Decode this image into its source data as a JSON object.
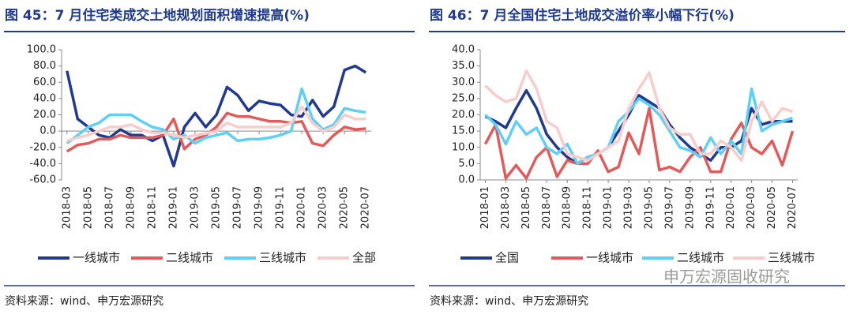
{
  "chart_data": [
    {
      "type": "line",
      "title": "图 45：7 月住宅类成交土地规划面积增速提高(%)",
      "source": "资料来源：wind、申万宏源研究",
      "categories": [
        "2018-03",
        null,
        "2018-05",
        null,
        "2018-07",
        null,
        "2018-09",
        null,
        "2018-11",
        null,
        "2019-01",
        null,
        "2019-03",
        null,
        "2019-05",
        null,
        "2019-07",
        null,
        "2019-09",
        null,
        "2019-11",
        null,
        "2020-01",
        null,
        "2020-03",
        null,
        "2020-05",
        null,
        "2020-07"
      ],
      "ylim": [
        -60,
        100
      ],
      "yticks": [
        {
          "value": -60,
          "label": "-60.0"
        },
        {
          "value": -40,
          "label": "-40.0"
        },
        {
          "value": -20,
          "label": "-20.0"
        },
        {
          "value": 0,
          "label": "0.0"
        },
        {
          "value": 20,
          "label": "20.0"
        },
        {
          "value": 40,
          "label": "40.0"
        },
        {
          "value": 60,
          "label": "60.0"
        },
        {
          "value": 80,
          "label": "80.0"
        },
        {
          "value": 100,
          "label": "100.0"
        }
      ],
      "grid": false,
      "series": [
        {
          "name": "一线城市",
          "color": "#1f3a8f",
          "values": [
            74,
            15,
            5,
            -5,
            -8,
            2,
            -5,
            -5,
            -12,
            -5,
            -43,
            5,
            22,
            5,
            20,
            54,
            44,
            25,
            37,
            34,
            32,
            20,
            18,
            38,
            18,
            30,
            75,
            80,
            72
          ]
        },
        {
          "name": "二线城市",
          "color": "#e45a5a",
          "values": [
            -25,
            -17,
            -15,
            -10,
            -10,
            -5,
            -8,
            -8,
            -8,
            -5,
            15,
            -22,
            -10,
            -5,
            5,
            22,
            18,
            18,
            15,
            12,
            12,
            10,
            12,
            -15,
            -18,
            -5,
            5,
            2,
            3
          ]
        },
        {
          "name": "三线城市",
          "color": "#5fd0f5",
          "values": [
            -15,
            -5,
            5,
            10,
            20,
            20,
            20,
            12,
            5,
            2,
            -10,
            -5,
            -15,
            -8,
            -5,
            -2,
            -12,
            -10,
            -10,
            -8,
            -5,
            0,
            52,
            15,
            2,
            8,
            28,
            25,
            23
          ]
        },
        {
          "name": "全部",
          "color": "#f9cccc",
          "values": [
            -12,
            -8,
            -5,
            0,
            5,
            5,
            8,
            2,
            -2,
            -2,
            -5,
            -8,
            -5,
            -3,
            0,
            10,
            5,
            5,
            5,
            5,
            5,
            10,
            30,
            10,
            0,
            5,
            20,
            15,
            15
          ]
        }
      ]
    },
    {
      "type": "line",
      "title": "图 46：7 月全国住宅土地成交溢价率小幅下行(%)",
      "source": "资料来源：wind、申万宏源研究",
      "categories": [
        "2018-01",
        null,
        "2018-03",
        null,
        "2018-05",
        null,
        "2018-07",
        null,
        "2018-09",
        null,
        "2018-11",
        null,
        "2019-01",
        null,
        "2019-03",
        null,
        "2019-05",
        null,
        "2019-07",
        null,
        "2019-09",
        null,
        "2019-11",
        null,
        "2020-01",
        null,
        "2020-03",
        null,
        "2020-05",
        null,
        "2020-07"
      ],
      "ylim": [
        0,
        40
      ],
      "yticks": [
        {
          "value": 0,
          "label": "0.0"
        },
        {
          "value": 5,
          "label": "5.0"
        },
        {
          "value": 10,
          "label": "10.0"
        },
        {
          "value": 15,
          "label": "15.0"
        },
        {
          "value": 20,
          "label": "20.0"
        },
        {
          "value": 25,
          "label": "25.0"
        },
        {
          "value": 30,
          "label": "30.0"
        },
        {
          "value": 35,
          "label": "35.0"
        },
        {
          "value": 40,
          "label": "40.0"
        }
      ],
      "grid": false,
      "series": [
        {
          "name": "全国",
          "color": "#1f3a8f",
          "values": [
            19.5,
            18,
            16,
            22,
            27.5,
            22,
            14,
            10,
            7,
            5,
            7,
            8,
            10,
            15,
            20,
            26,
            24,
            22,
            17,
            13,
            10,
            8,
            6,
            10,
            10,
            12,
            22,
            17,
            18,
            18,
            18
          ]
        },
        {
          "name": "一线城市",
          "color": "#e45a5a",
          "values": [
            11,
            17,
            0.5,
            4.5,
            0.5,
            7,
            10,
            1,
            6,
            5,
            5,
            9,
            2.5,
            4,
            14.5,
            8,
            22,
            3,
            4,
            2.5,
            7,
            10,
            2.5,
            2.5,
            12.5,
            17.5,
            10,
            8,
            12,
            4.5,
            15
          ]
        },
        {
          "name": "二线城市",
          "color": "#5fd0f5",
          "values": [
            20,
            17,
            11,
            18,
            14,
            16,
            10,
            8,
            11,
            5,
            7,
            8,
            10,
            18,
            21,
            25,
            23,
            20,
            15,
            10,
            9,
            7,
            13,
            8,
            12,
            8,
            28,
            15,
            17,
            18,
            19
          ]
        },
        {
          "name": "三线城市",
          "color": "#f9cccc",
          "values": [
            29,
            26,
            24,
            25,
            33.5,
            28,
            18,
            16,
            8,
            7,
            6,
            8,
            10,
            12,
            22,
            28,
            33,
            22,
            16,
            14,
            14,
            8,
            8,
            12,
            10,
            6,
            18,
            24,
            18,
            22,
            21
          ]
        }
      ]
    }
  ],
  "watermark": "申万宏源固收研究"
}
